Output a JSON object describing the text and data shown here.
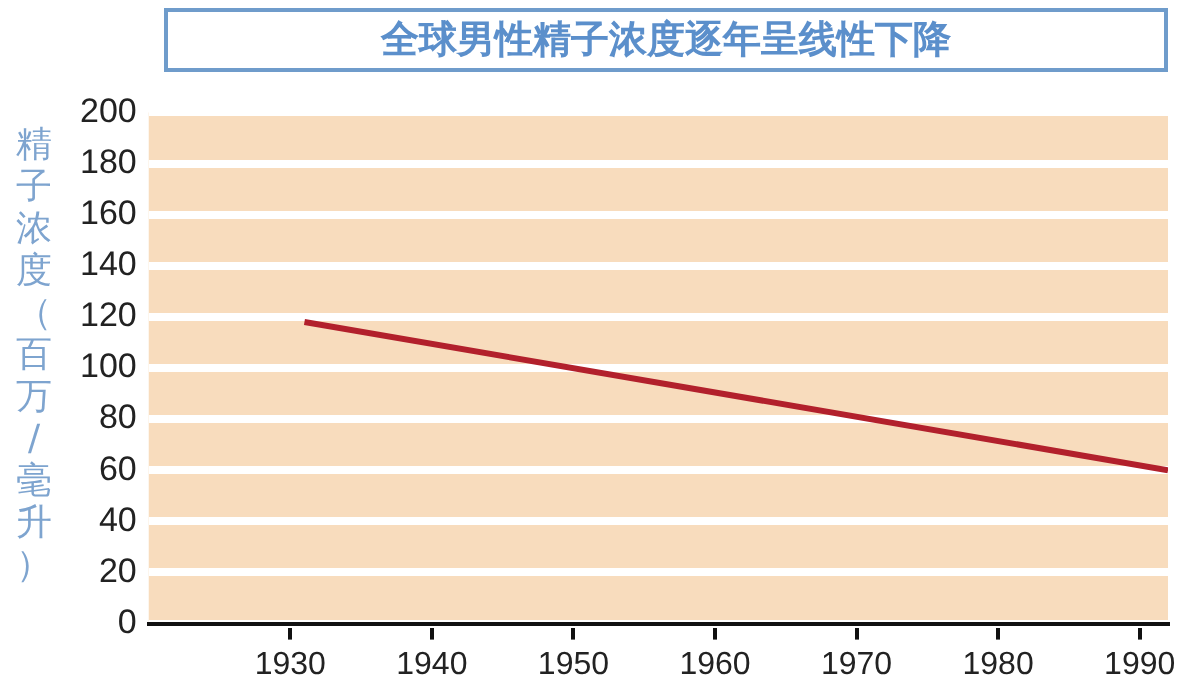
{
  "chart_data": {
    "type": "line",
    "title": "全球男性精子浓度逐年呈线性下降",
    "ylabel": "精子浓度（百万/毫升）",
    "x": [
      1931,
      1992
    ],
    "series": [
      {
        "color": "#b2202c",
        "values": [
          118,
          60
        ]
      }
    ],
    "xlim": [
      1920,
      1992
    ],
    "xticks": [
      1930,
      1940,
      1950,
      1960,
      1970,
      1980,
      1990
    ],
    "ylim": [
      0,
      200
    ],
    "yticks": [
      0,
      20,
      40,
      60,
      80,
      100,
      120,
      140,
      160,
      180,
      200
    ],
    "grid": "y",
    "legend": false,
    "marker": "none",
    "line_style": "solid"
  }
}
